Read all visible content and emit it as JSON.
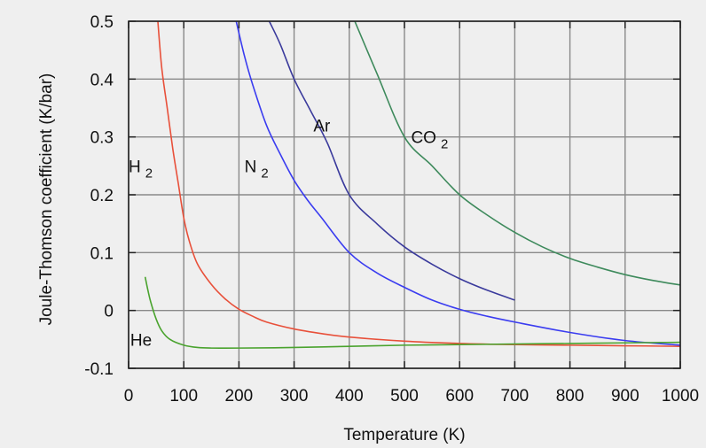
{
  "chart_data": {
    "type": "line",
    "title": "",
    "xlabel": "Temperature (K)",
    "ylabel": "Joule-Thomson coefficient (K/bar)",
    "xlim": [
      0,
      1000
    ],
    "ylim": [
      -0.1,
      0.5
    ],
    "x_ticks": [
      0,
      100,
      200,
      300,
      400,
      500,
      600,
      700,
      800,
      900,
      1000
    ],
    "y_ticks": [
      -0.1,
      0,
      0.1,
      0.2,
      0.3,
      0.4,
      0.5
    ],
    "y_tick_labels": [
      "-0.1",
      "0",
      "0.1",
      "0.2",
      "0.3",
      "0.4",
      "0.5"
    ],
    "grid": true,
    "legend": "none (curves labeled directly)",
    "series": [
      {
        "name": "H2",
        "label": "H",
        "subscript": "2",
        "color": "#e8503a",
        "points": [
          [
            53,
            0.5
          ],
          [
            60,
            0.42
          ],
          [
            70,
            0.35
          ],
          [
            80,
            0.28
          ],
          [
            90,
            0.22
          ],
          [
            100,
            0.16
          ],
          [
            110,
            0.12
          ],
          [
            125,
            0.08
          ],
          [
            150,
            0.045
          ],
          [
            175,
            0.02
          ],
          [
            200,
            0.002
          ],
          [
            225,
            -0.01
          ],
          [
            250,
            -0.02
          ],
          [
            300,
            -0.032
          ],
          [
            350,
            -0.04
          ],
          [
            400,
            -0.046
          ],
          [
            500,
            -0.053
          ],
          [
            600,
            -0.057
          ],
          [
            700,
            -0.059
          ],
          [
            800,
            -0.06
          ],
          [
            900,
            -0.061
          ],
          [
            1000,
            -0.062
          ]
        ]
      },
      {
        "name": "N2",
        "label": "N",
        "subscript": "2",
        "color": "#3a3cf0",
        "points": [
          [
            195,
            0.5
          ],
          [
            210,
            0.44
          ],
          [
            225,
            0.39
          ],
          [
            250,
            0.32
          ],
          [
            275,
            0.27
          ],
          [
            300,
            0.225
          ],
          [
            325,
            0.19
          ],
          [
            350,
            0.16
          ],
          [
            400,
            0.1
          ],
          [
            450,
            0.065
          ],
          [
            500,
            0.04
          ],
          [
            550,
            0.018
          ],
          [
            600,
            0.002
          ],
          [
            650,
            -0.01
          ],
          [
            700,
            -0.02
          ],
          [
            800,
            -0.038
          ],
          [
            900,
            -0.052
          ],
          [
            1000,
            -0.06
          ]
        ]
      },
      {
        "name": "Ar",
        "label": "Ar",
        "subscript": "",
        "color": "#3a3a9c",
        "points": [
          [
            255,
            0.5
          ],
          [
            275,
            0.46
          ],
          [
            300,
            0.4
          ],
          [
            330,
            0.345
          ],
          [
            360,
            0.29
          ],
          [
            400,
            0.2
          ],
          [
            450,
            0.15
          ],
          [
            500,
            0.11
          ],
          [
            550,
            0.08
          ],
          [
            600,
            0.055
          ],
          [
            650,
            0.035
          ],
          [
            700,
            0.018
          ]
        ]
      },
      {
        "name": "CO2",
        "label": "CO",
        "subscript": "2",
        "color": "#3e8a5c",
        "points": [
          [
            410,
            0.5
          ],
          [
            450,
            0.41
          ],
          [
            500,
            0.3
          ],
          [
            550,
            0.25
          ],
          [
            600,
            0.2
          ],
          [
            650,
            0.165
          ],
          [
            700,
            0.135
          ],
          [
            750,
            0.11
          ],
          [
            800,
            0.09
          ],
          [
            850,
            0.075
          ],
          [
            900,
            0.062
          ],
          [
            950,
            0.052
          ],
          [
            1000,
            0.044
          ]
        ]
      },
      {
        "name": "He",
        "label": "He",
        "subscript": "",
        "color": "#4aa32e",
        "points": [
          [
            30,
            0.058
          ],
          [
            35,
            0.035
          ],
          [
            40,
            0.015
          ],
          [
            50,
            -0.015
          ],
          [
            60,
            -0.035
          ],
          [
            75,
            -0.05
          ],
          [
            100,
            -0.06
          ],
          [
            125,
            -0.064
          ],
          [
            150,
            -0.065
          ],
          [
            200,
            -0.065
          ],
          [
            300,
            -0.064
          ],
          [
            400,
            -0.062
          ],
          [
            500,
            -0.06
          ],
          [
            600,
            -0.059
          ],
          [
            700,
            -0.058
          ],
          [
            800,
            -0.057
          ],
          [
            900,
            -0.056
          ],
          [
            1000,
            -0.055
          ]
        ]
      }
    ],
    "annotations": [
      {
        "series": "H2",
        "text": "H",
        "sub": "2",
        "x": 0,
        "y": 0.25
      },
      {
        "series": "N2",
        "text": "N",
        "sub": "2",
        "x": 210,
        "y": 0.25
      },
      {
        "series": "Ar",
        "text": "Ar",
        "sub": "",
        "x": 335,
        "y": 0.32
      },
      {
        "series": "CO2",
        "text": "CO",
        "sub": "2",
        "x": 512,
        "y": 0.3
      },
      {
        "series": "He",
        "text": "He",
        "sub": "",
        "x": 3,
        "y": -0.05
      }
    ]
  }
}
